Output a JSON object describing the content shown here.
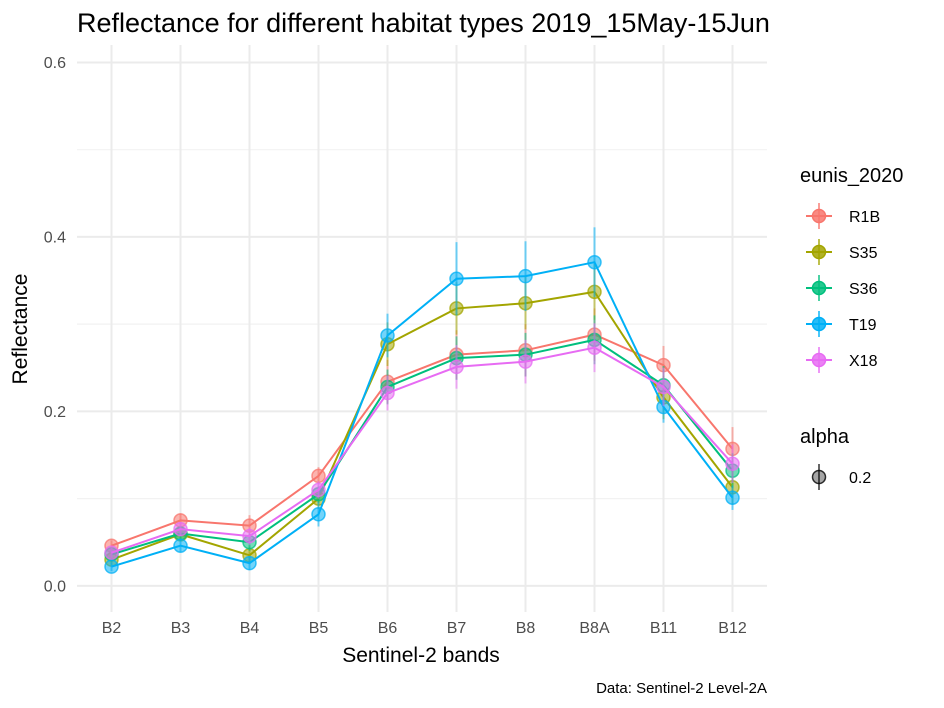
{
  "chart_data": {
    "type": "line",
    "title": "Reflectance for different habitat types 2019_15May-15Jun",
    "xlabel": "Sentinel-2 bands",
    "ylabel": "Reflectance",
    "caption": "Data: Sentinel-2 Level-2A",
    "categories": [
      "B2",
      "B3",
      "B4",
      "B5",
      "B6",
      "B7",
      "B8",
      "B8A",
      "B11",
      "B12"
    ],
    "ylim": [
      -0.03,
      0.62
    ],
    "yticks": [
      0.0,
      0.2,
      0.4,
      0.6
    ],
    "ytick_labels": [
      "0.0",
      "0.2",
      "0.4",
      "0.6"
    ],
    "grid": true,
    "legend_placement": "right",
    "legend_title": "eunis_2020",
    "alpha_legend": {
      "title": "alpha",
      "label": "0.2"
    },
    "series": [
      {
        "name": "R1B",
        "color": "#F8766D",
        "values": [
          0.046,
          0.075,
          0.069,
          0.126,
          0.234,
          0.265,
          0.27,
          0.288,
          0.253,
          0.157
        ],
        "error": [
          0.006,
          0.008,
          0.012,
          0.01,
          0.025,
          0.028,
          0.03,
          0.03,
          0.022,
          0.025
        ]
      },
      {
        "name": "S35",
        "color": "#A3A500",
        "values": [
          0.03,
          0.059,
          0.035,
          0.1,
          0.277,
          0.318,
          0.324,
          0.337,
          0.216,
          0.113
        ],
        "error": [
          0.006,
          0.008,
          0.01,
          0.012,
          0.025,
          0.03,
          0.03,
          0.032,
          0.025,
          0.02
        ]
      },
      {
        "name": "S36",
        "color": "#00BF7D",
        "values": [
          0.036,
          0.06,
          0.05,
          0.105,
          0.228,
          0.261,
          0.265,
          0.282,
          0.23,
          0.132
        ],
        "error": [
          0.006,
          0.008,
          0.01,
          0.01,
          0.02,
          0.025,
          0.025,
          0.028,
          0.022,
          0.02
        ]
      },
      {
        "name": "T19",
        "color": "#00B0F6",
        "values": [
          0.022,
          0.046,
          0.026,
          0.082,
          0.287,
          0.352,
          0.355,
          0.371,
          0.205,
          0.101
        ],
        "error": [
          0.005,
          0.007,
          0.008,
          0.014,
          0.025,
          0.042,
          0.04,
          0.04,
          0.018,
          0.014
        ]
      },
      {
        "name": "X18",
        "color": "#E76BF3",
        "values": [
          0.038,
          0.065,
          0.057,
          0.11,
          0.221,
          0.251,
          0.257,
          0.273,
          0.228,
          0.14
        ],
        "error": [
          0.006,
          0.008,
          0.01,
          0.01,
          0.02,
          0.025,
          0.025,
          0.028,
          0.022,
          0.022
        ]
      }
    ]
  }
}
